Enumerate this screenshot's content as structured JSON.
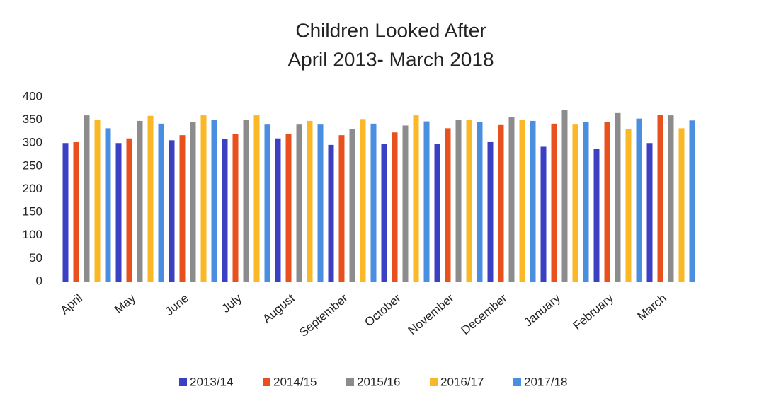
{
  "chart_data": {
    "type": "bar",
    "title": "Children Looked After",
    "subtitle": "April 2013- March 2018",
    "categories": [
      "April",
      "May",
      "June",
      "July",
      "August",
      "September",
      "October",
      "November",
      "December",
      "January",
      "February",
      "March"
    ],
    "series": [
      {
        "name": "2013/14",
        "color": "#3b3fc2",
        "values": [
          300,
          300,
          306,
          308,
          310,
          296,
          298,
          298,
          302,
          292,
          288,
          300
        ]
      },
      {
        "name": "2014/15",
        "color": "#e8501e",
        "values": [
          302,
          310,
          317,
          319,
          320,
          317,
          323,
          332,
          339,
          342,
          345,
          361
        ]
      },
      {
        "name": "2015/16",
        "color": "#8c8c8c",
        "values": [
          360,
          348,
          345,
          350,
          340,
          330,
          338,
          351,
          357,
          372,
          365,
          360
        ]
      },
      {
        "name": "2016/17",
        "color": "#fbb826",
        "values": [
          350,
          359,
          360,
          360,
          348,
          352,
          360,
          351,
          350,
          340,
          330,
          332
        ]
      },
      {
        "name": "2017/18",
        "color": "#4a8ee0",
        "values": [
          332,
          342,
          350,
          340,
          340,
          342,
          347,
          345,
          348,
          345,
          353,
          349
        ]
      }
    ],
    "ylim": [
      0,
      400
    ],
    "yticks": [
      0,
      50,
      100,
      150,
      200,
      250,
      300,
      350,
      400
    ],
    "grid": false,
    "legend": "bottom"
  }
}
